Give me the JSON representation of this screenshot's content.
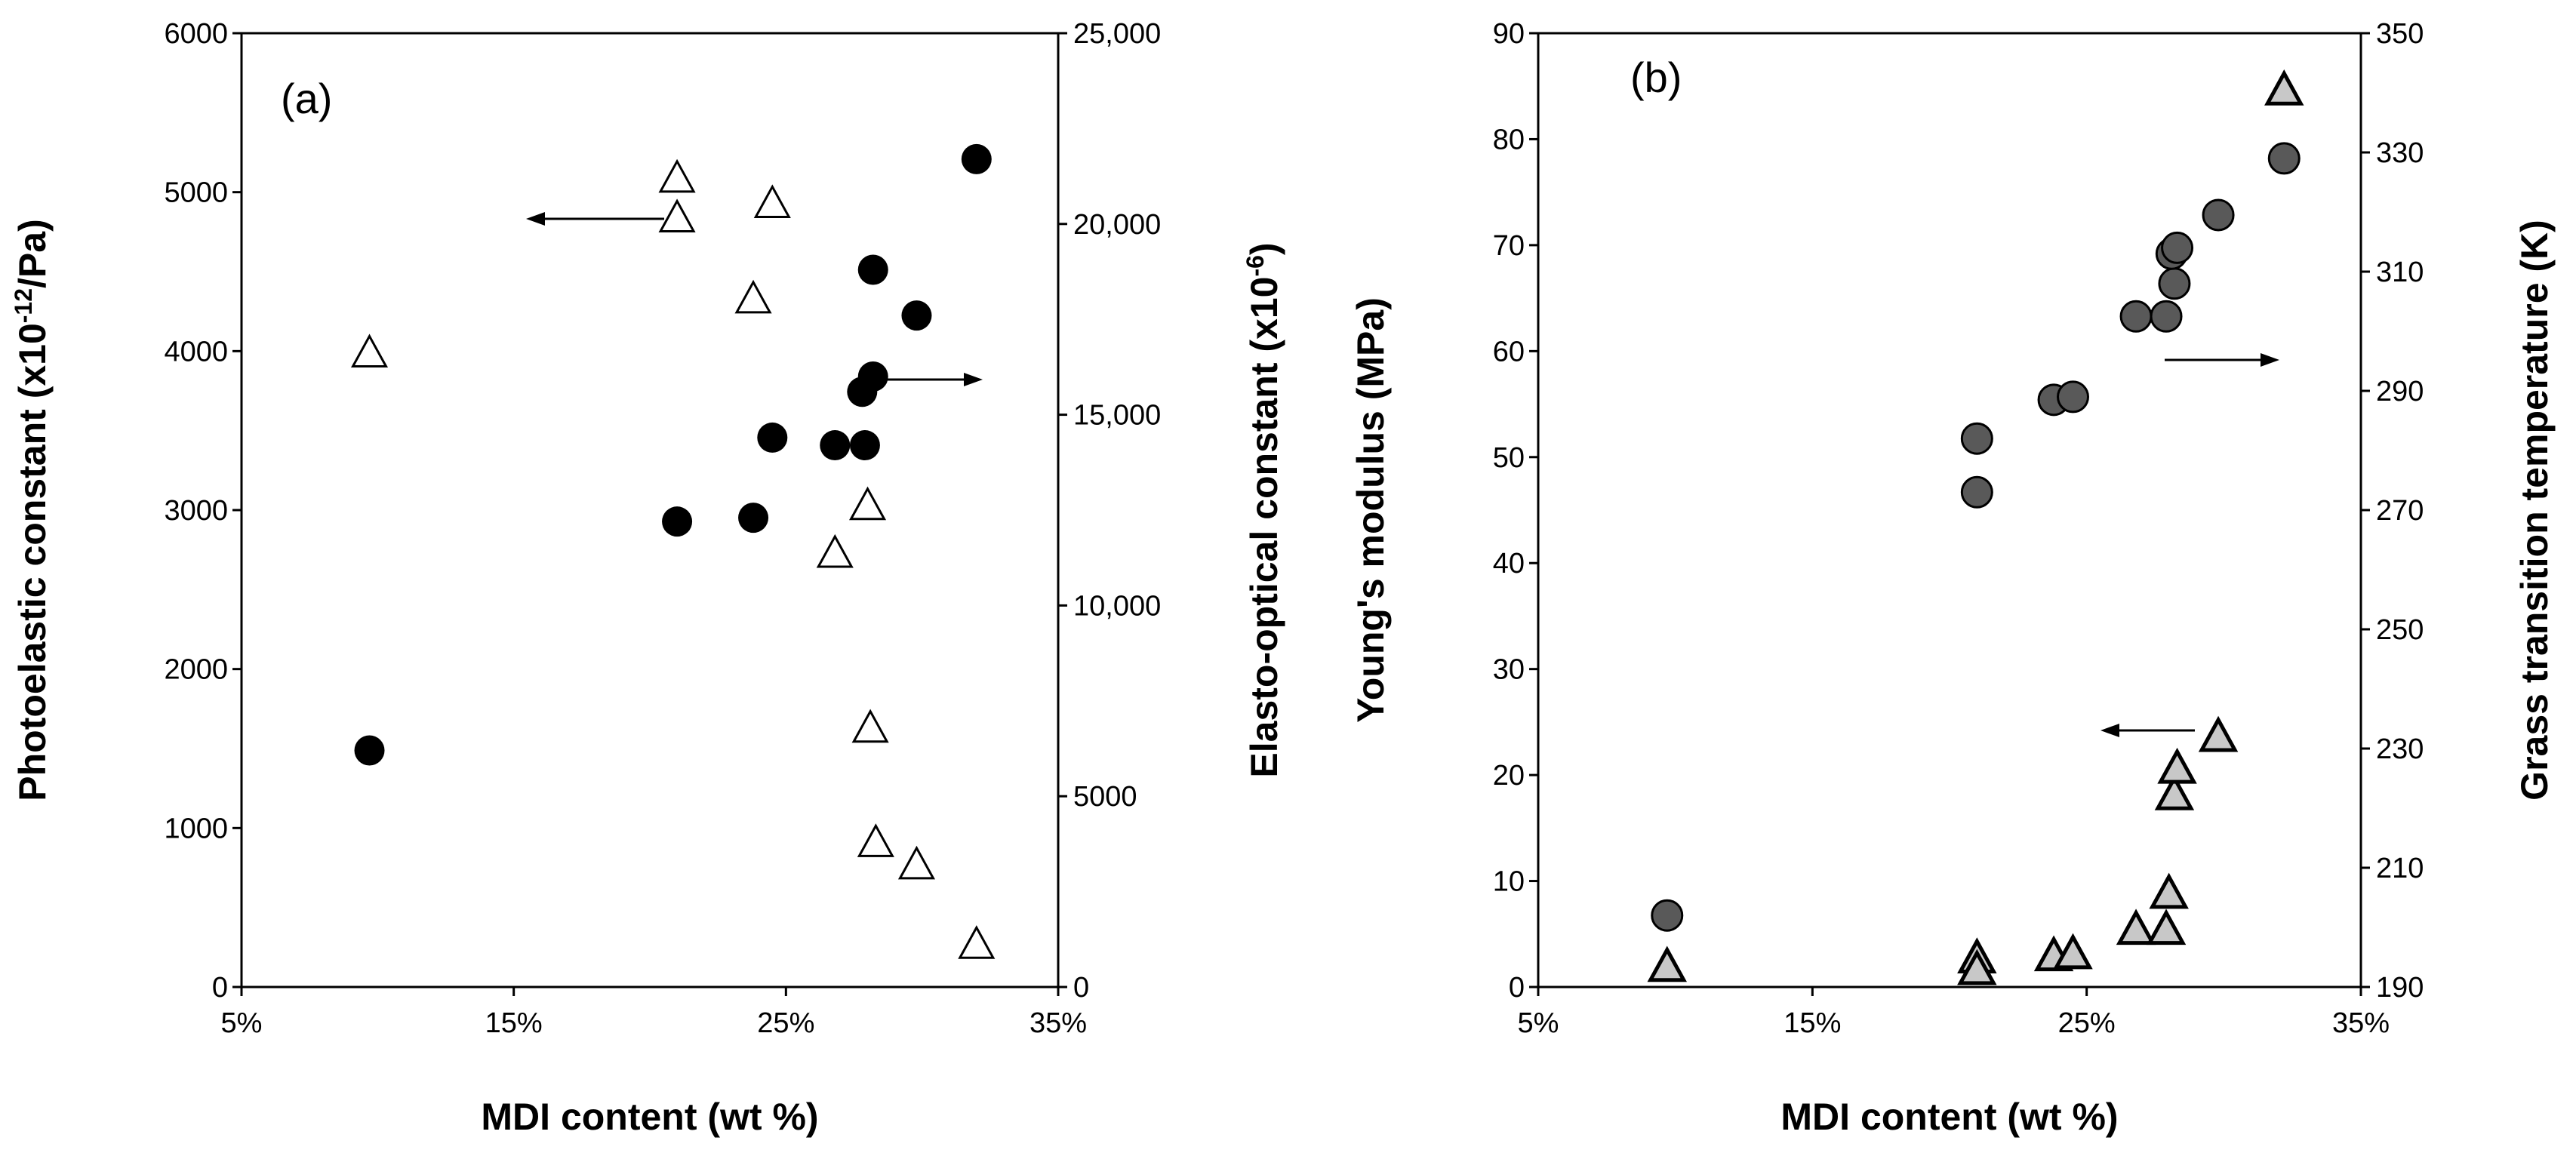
{
  "chart_data": [
    {
      "panel": "(a)",
      "type": "scatter",
      "xlabel": "MDI content (wt %)",
      "ylabel_left_parts": [
        "Photoelastic constant (x10",
        "-12",
        "/Pa)"
      ],
      "ylabel_right_parts": [
        "Elasto-optical constant (x10",
        "-6",
        ")"
      ],
      "x_range": [
        5,
        35
      ],
      "x_ticks": [
        5,
        15,
        25,
        35
      ],
      "x_tick_labels": [
        "5%",
        "15%",
        "25%",
        "35%"
      ],
      "y_left_range": [
        0,
        6000
      ],
      "y_left_ticks": [
        0,
        1000,
        2000,
        3000,
        4000,
        5000,
        6000
      ],
      "y_left_tick_labels": [
        "0",
        "1000",
        "2000",
        "3000",
        "4000",
        "5000",
        "6000"
      ],
      "y_right_range": [
        0,
        25000
      ],
      "y_right_ticks": [
        0,
        5000,
        10000,
        15000,
        20000,
        25000
      ],
      "y_right_tick_labels": [
        "0",
        "5000",
        "10,000",
        "15,000",
        "20,000",
        "25,000"
      ],
      "series": [
        {
          "name": "Photoelastic constant",
          "axis": "left",
          "marker": "triangle-open",
          "points": [
            [
              9.7,
              3980
            ],
            [
              21.0,
              5080
            ],
            [
              21.0,
              4830
            ],
            [
              24.5,
              4920
            ],
            [
              23.8,
              4320
            ],
            [
              28.0,
              3020
            ],
            [
              26.8,
              2720
            ],
            [
              28.1,
              1620
            ],
            [
              28.3,
              900
            ],
            [
              29.8,
              760
            ],
            [
              32.0,
              260
            ]
          ]
        },
        {
          "name": "Elasto-optical constant",
          "axis": "right",
          "marker": "circle-filled",
          "points": [
            [
              9.7,
              6200
            ],
            [
              21.0,
              12200
            ],
            [
              23.8,
              12300
            ],
            [
              24.5,
              14400
            ],
            [
              26.8,
              14200
            ],
            [
              27.9,
              14200
            ],
            [
              27.8,
              15600
            ],
            [
              28.2,
              16000
            ],
            [
              28.2,
              18800
            ],
            [
              29.8,
              17600
            ],
            [
              32.0,
              21700
            ]
          ]
        }
      ],
      "annotations": [
        {
          "type": "arrow",
          "direction": "left",
          "label": "points to left axis"
        },
        {
          "type": "arrow",
          "direction": "right",
          "label": "points to right axis"
        }
      ]
    },
    {
      "panel": "(b)",
      "type": "scatter",
      "xlabel": "MDI content (wt %)",
      "ylabel_left": "Young's modulus (MPa)",
      "ylabel_right": "Grass transition temperature (K)",
      "x_range": [
        5,
        35
      ],
      "x_ticks": [
        5,
        15,
        25,
        35
      ],
      "x_tick_labels": [
        "5%",
        "15%",
        "25%",
        "35%"
      ],
      "y_left_range": [
        0,
        90
      ],
      "y_left_ticks": [
        0,
        10,
        20,
        30,
        40,
        50,
        60,
        70,
        80,
        90
      ],
      "y_left_tick_labels": [
        "0",
        "10",
        "20",
        "30",
        "40",
        "50",
        "60",
        "70",
        "80",
        "90"
      ],
      "y_right_range": [
        190,
        350
      ],
      "y_right_ticks": [
        190,
        210,
        230,
        250,
        270,
        290,
        310,
        330,
        350
      ],
      "y_right_tick_labels": [
        "190",
        "210",
        "230",
        "250",
        "270",
        "290",
        "310",
        "330",
        "350"
      ],
      "series": [
        {
          "name": "Young's modulus",
          "axis": "left",
          "marker": "triangle-gray",
          "points": [
            [
              9.7,
              1.8
            ],
            [
              21.0,
              2.6
            ],
            [
              21.0,
              1.5
            ],
            [
              23.8,
              2.8
            ],
            [
              24.5,
              3.0
            ],
            [
              26.8,
              5.3
            ],
            [
              27.9,
              5.3
            ],
            [
              28.0,
              8.7
            ],
            [
              28.2,
              18.0
            ],
            [
              28.3,
              20.5
            ],
            [
              29.8,
              23.5
            ],
            [
              32.2,
              84.5
            ]
          ]
        },
        {
          "name": "Grass transition temperature",
          "axis": "right",
          "marker": "circle-gray",
          "points": [
            [
              9.7,
              202
            ],
            [
              21.0,
              273
            ],
            [
              21.0,
              282
            ],
            [
              23.8,
              288.5
            ],
            [
              24.5,
              289
            ],
            [
              26.8,
              302.5
            ],
            [
              27.9,
              302.5
            ],
            [
              28.2,
              308
            ],
            [
              28.1,
              313
            ],
            [
              28.3,
              314
            ],
            [
              29.8,
              319.5
            ],
            [
              32.2,
              329
            ]
          ]
        }
      ],
      "annotations": [
        {
          "type": "arrow",
          "direction": "right",
          "label": "points to right axis"
        },
        {
          "type": "arrow",
          "direction": "left",
          "label": "points to left axis"
        }
      ]
    }
  ]
}
